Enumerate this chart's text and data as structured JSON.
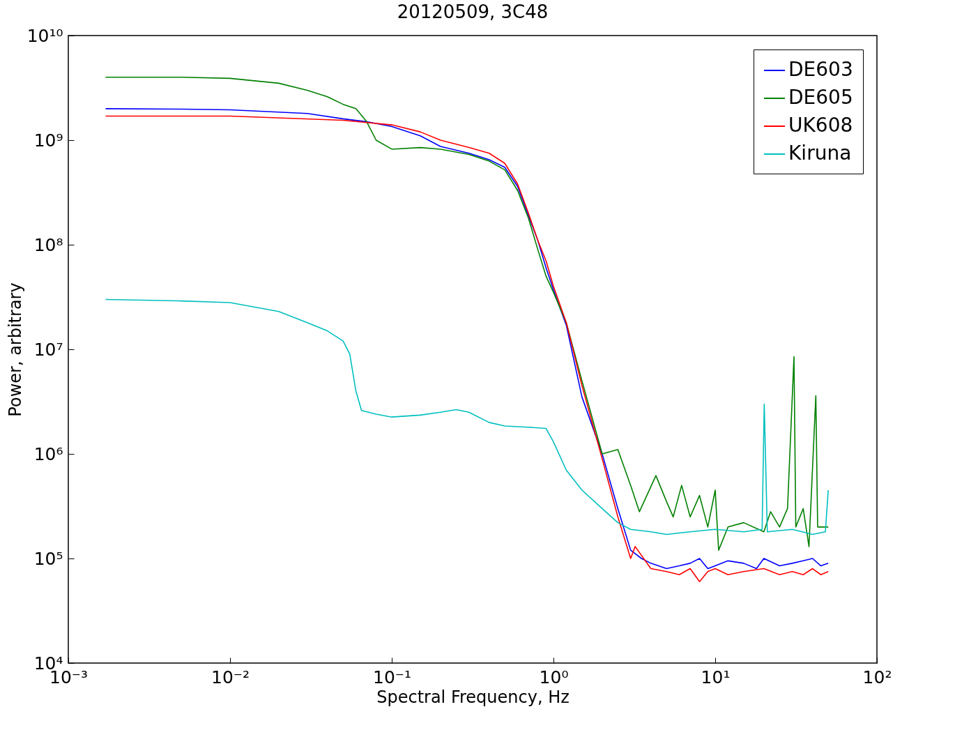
{
  "chart_data": {
    "type": "line",
    "title": "20120509, 3C48",
    "xlabel": "Spectral Frequency, Hz",
    "ylabel": "Power, arbitrary",
    "log": "xy",
    "legend": "top right",
    "xlim": [
      0.001,
      100
    ],
    "ylim": [
      10000,
      10000000000
    ],
    "xticks": [
      {
        "value": 0.001,
        "label": "10⁻³"
      },
      {
        "value": 0.01,
        "label": "10⁻²"
      },
      {
        "value": 0.1,
        "label": "10⁻¹"
      },
      {
        "value": 1,
        "label": "10⁰"
      },
      {
        "value": 10,
        "label": "10¹"
      },
      {
        "value": 100,
        "label": "10²"
      }
    ],
    "yticks": [
      {
        "value": 10000,
        "label": "10⁴"
      },
      {
        "value": 100000,
        "label": "10⁵"
      },
      {
        "value": 1000000,
        "label": "10⁶"
      },
      {
        "value": 10000000,
        "label": "10⁷"
      },
      {
        "value": 100000000,
        "label": "10⁸"
      },
      {
        "value": 1000000000,
        "label": "10⁹"
      },
      {
        "value": 10000000000,
        "label": "10¹⁰"
      }
    ],
    "series": [
      {
        "name": "DE603",
        "color": "#0000ff",
        "x": [
          0.0017,
          0.005,
          0.01,
          0.03,
          0.05,
          0.07,
          0.1,
          0.15,
          0.2,
          0.3,
          0.4,
          0.5,
          0.6,
          0.7,
          0.8,
          0.9,
          1.0,
          1.2,
          1.5,
          2,
          2.5,
          3,
          3.5,
          4,
          5,
          6,
          7,
          8,
          9,
          10,
          12,
          15,
          18,
          20,
          25,
          30,
          35,
          40,
          45,
          50
        ],
        "values": [
          2000000000,
          1980000000,
          1950000000,
          1800000000,
          1600000000,
          1500000000,
          1350000000,
          1100000000,
          870000000,
          750000000,
          650000000,
          550000000,
          360000000,
          190000000,
          110000000,
          60000000,
          37000000,
          17000000,
          3500000,
          1000000,
          300000,
          120000,
          100000,
          90000,
          80000,
          85000,
          90000,
          100000,
          80000,
          85000,
          95000,
          90000,
          80000,
          100000,
          85000,
          90000,
          95000,
          100000,
          85000,
          90000
        ]
      },
      {
        "name": "DE605",
        "color": "#008000",
        "x": [
          0.0017,
          0.005,
          0.01,
          0.02,
          0.03,
          0.04,
          0.05,
          0.06,
          0.07,
          0.08,
          0.1,
          0.15,
          0.2,
          0.3,
          0.4,
          0.5,
          0.6,
          0.7,
          0.8,
          0.9,
          1.0,
          1.2,
          1.5,
          2,
          2.5,
          3,
          3.4,
          4.3,
          5,
          5.5,
          6.2,
          7,
          8,
          9,
          10,
          10.5,
          12,
          15,
          20,
          22,
          25,
          28,
          30.7,
          31.5,
          35,
          38,
          41.9,
          43,
          45,
          50
        ],
        "values": [
          4000000000,
          4000000000,
          3900000000,
          3500000000,
          3000000000,
          2600000000,
          2200000000,
          2000000000,
          1500000000,
          1000000000,
          820000000,
          850000000,
          820000000,
          730000000,
          630000000,
          520000000,
          330000000,
          180000000,
          90000000,
          50000000,
          35000000,
          18000000,
          5000000,
          1000000,
          1100000,
          500000,
          280000,
          620000,
          350000,
          250000,
          500000,
          250000,
          400000,
          200000,
          450000,
          120000,
          200000,
          220000,
          180000,
          280000,
          200000,
          300000,
          8500000,
          200000,
          300000,
          130000,
          3600000,
          200000,
          200000,
          200000
        ]
      },
      {
        "name": "UK608",
        "color": "#ff0000",
        "x": [
          0.0017,
          0.005,
          0.01,
          0.05,
          0.1,
          0.15,
          0.2,
          0.3,
          0.4,
          0.5,
          0.6,
          0.7,
          0.8,
          0.9,
          1.0,
          1.2,
          1.5,
          2,
          2.5,
          3,
          3.2,
          4,
          5,
          6,
          7,
          8,
          9,
          10,
          12,
          15,
          20,
          25,
          30,
          35,
          40,
          45,
          50
        ],
        "values": [
          1700000000,
          1700000000,
          1700000000,
          1550000000,
          1400000000,
          1200000000,
          1000000000,
          850000000,
          750000000,
          600000000,
          380000000,
          200000000,
          110000000,
          70000000,
          40000000,
          18000000,
          4500000,
          900000,
          250000,
          100000,
          130000,
          80000,
          75000,
          70000,
          80000,
          60000,
          75000,
          80000,
          70000,
          75000,
          80000,
          70000,
          75000,
          70000,
          80000,
          70000,
          75000
        ]
      },
      {
        "name": "Kiruna",
        "color": "#00bfbf",
        "x": [
          0.0017,
          0.005,
          0.01,
          0.02,
          0.03,
          0.04,
          0.05,
          0.055,
          0.06,
          0.065,
          0.08,
          0.1,
          0.15,
          0.2,
          0.25,
          0.3,
          0.4,
          0.5,
          0.7,
          0.9,
          1.0,
          1.2,
          1.5,
          2,
          2.5,
          3,
          4,
          5,
          7,
          10,
          15,
          19.5,
          20.1,
          21,
          30,
          40,
          48,
          50
        ],
        "values": [
          30000000,
          29000000,
          28000000,
          23000000,
          18000000,
          15000000,
          12000000,
          9000000,
          4000000,
          2600000,
          2400000,
          2250000,
          2350000,
          2500000,
          2650000,
          2500000,
          2000000,
          1850000,
          1800000,
          1750000,
          1300000,
          700000,
          450000,
          300000,
          220000,
          190000,
          180000,
          170000,
          180000,
          190000,
          180000,
          190000,
          3000000,
          180000,
          190000,
          170000,
          180000,
          450000
        ]
      }
    ]
  }
}
